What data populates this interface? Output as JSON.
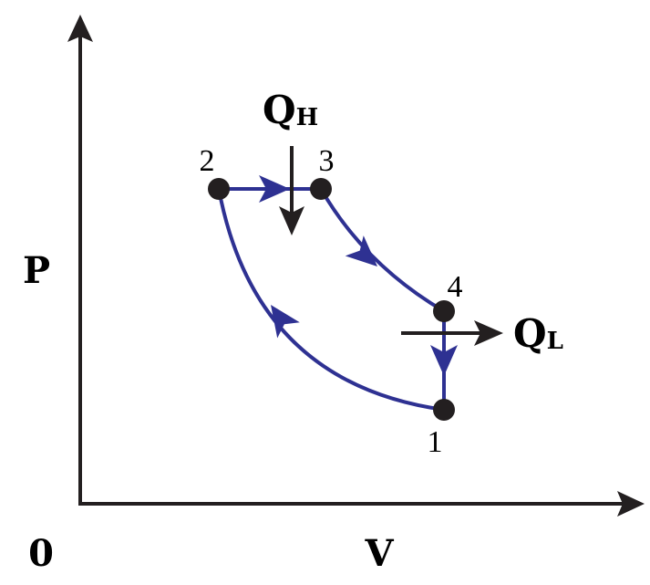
{
  "axes": {
    "y_label": "P",
    "x_label": "V",
    "origin": "0"
  },
  "nodes": [
    {
      "label": "1"
    },
    {
      "label": "2"
    },
    {
      "label": "3"
    },
    {
      "label": "4"
    }
  ],
  "heat": {
    "in": {
      "symbol": "Q",
      "subscript": "H"
    },
    "out": {
      "symbol": "Q",
      "subscript": "L"
    }
  }
}
